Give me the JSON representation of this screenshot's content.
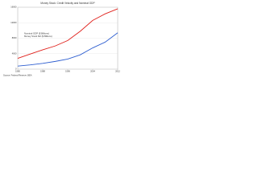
{
  "chart_data": {
    "type": "line",
    "title": "Money Stock: Credit Velocity and Nominal GDP",
    "source": "Source: Federal Reserve, BEA",
    "x": [
      1980,
      1984,
      1988,
      1992,
      1996,
      2000,
      2004,
      2008,
      2012
    ],
    "series": [
      {
        "name": "Nominal GDP ($ Billions)",
        "color": "#e0201b",
        "values": [
          2800,
          3900,
          5000,
          6000,
          7400,
          9800,
          12600,
          14300,
          15600
        ]
      },
      {
        "name": "Money Stock M2 ($ Billions)",
        "color": "#2f5fd0",
        "values": [
          800,
          1100,
          1500,
          2000,
          2600,
          3700,
          5500,
          7000,
          9400
        ]
      }
    ],
    "xlim": [
      1980,
      2012
    ],
    "xticks": [
      1980,
      1988,
      1996,
      2004,
      2012
    ],
    "ylim": [
      0,
      16000
    ],
    "yticks": [
      0,
      4000,
      8000,
      12000,
      16000
    ],
    "grid": true
  }
}
